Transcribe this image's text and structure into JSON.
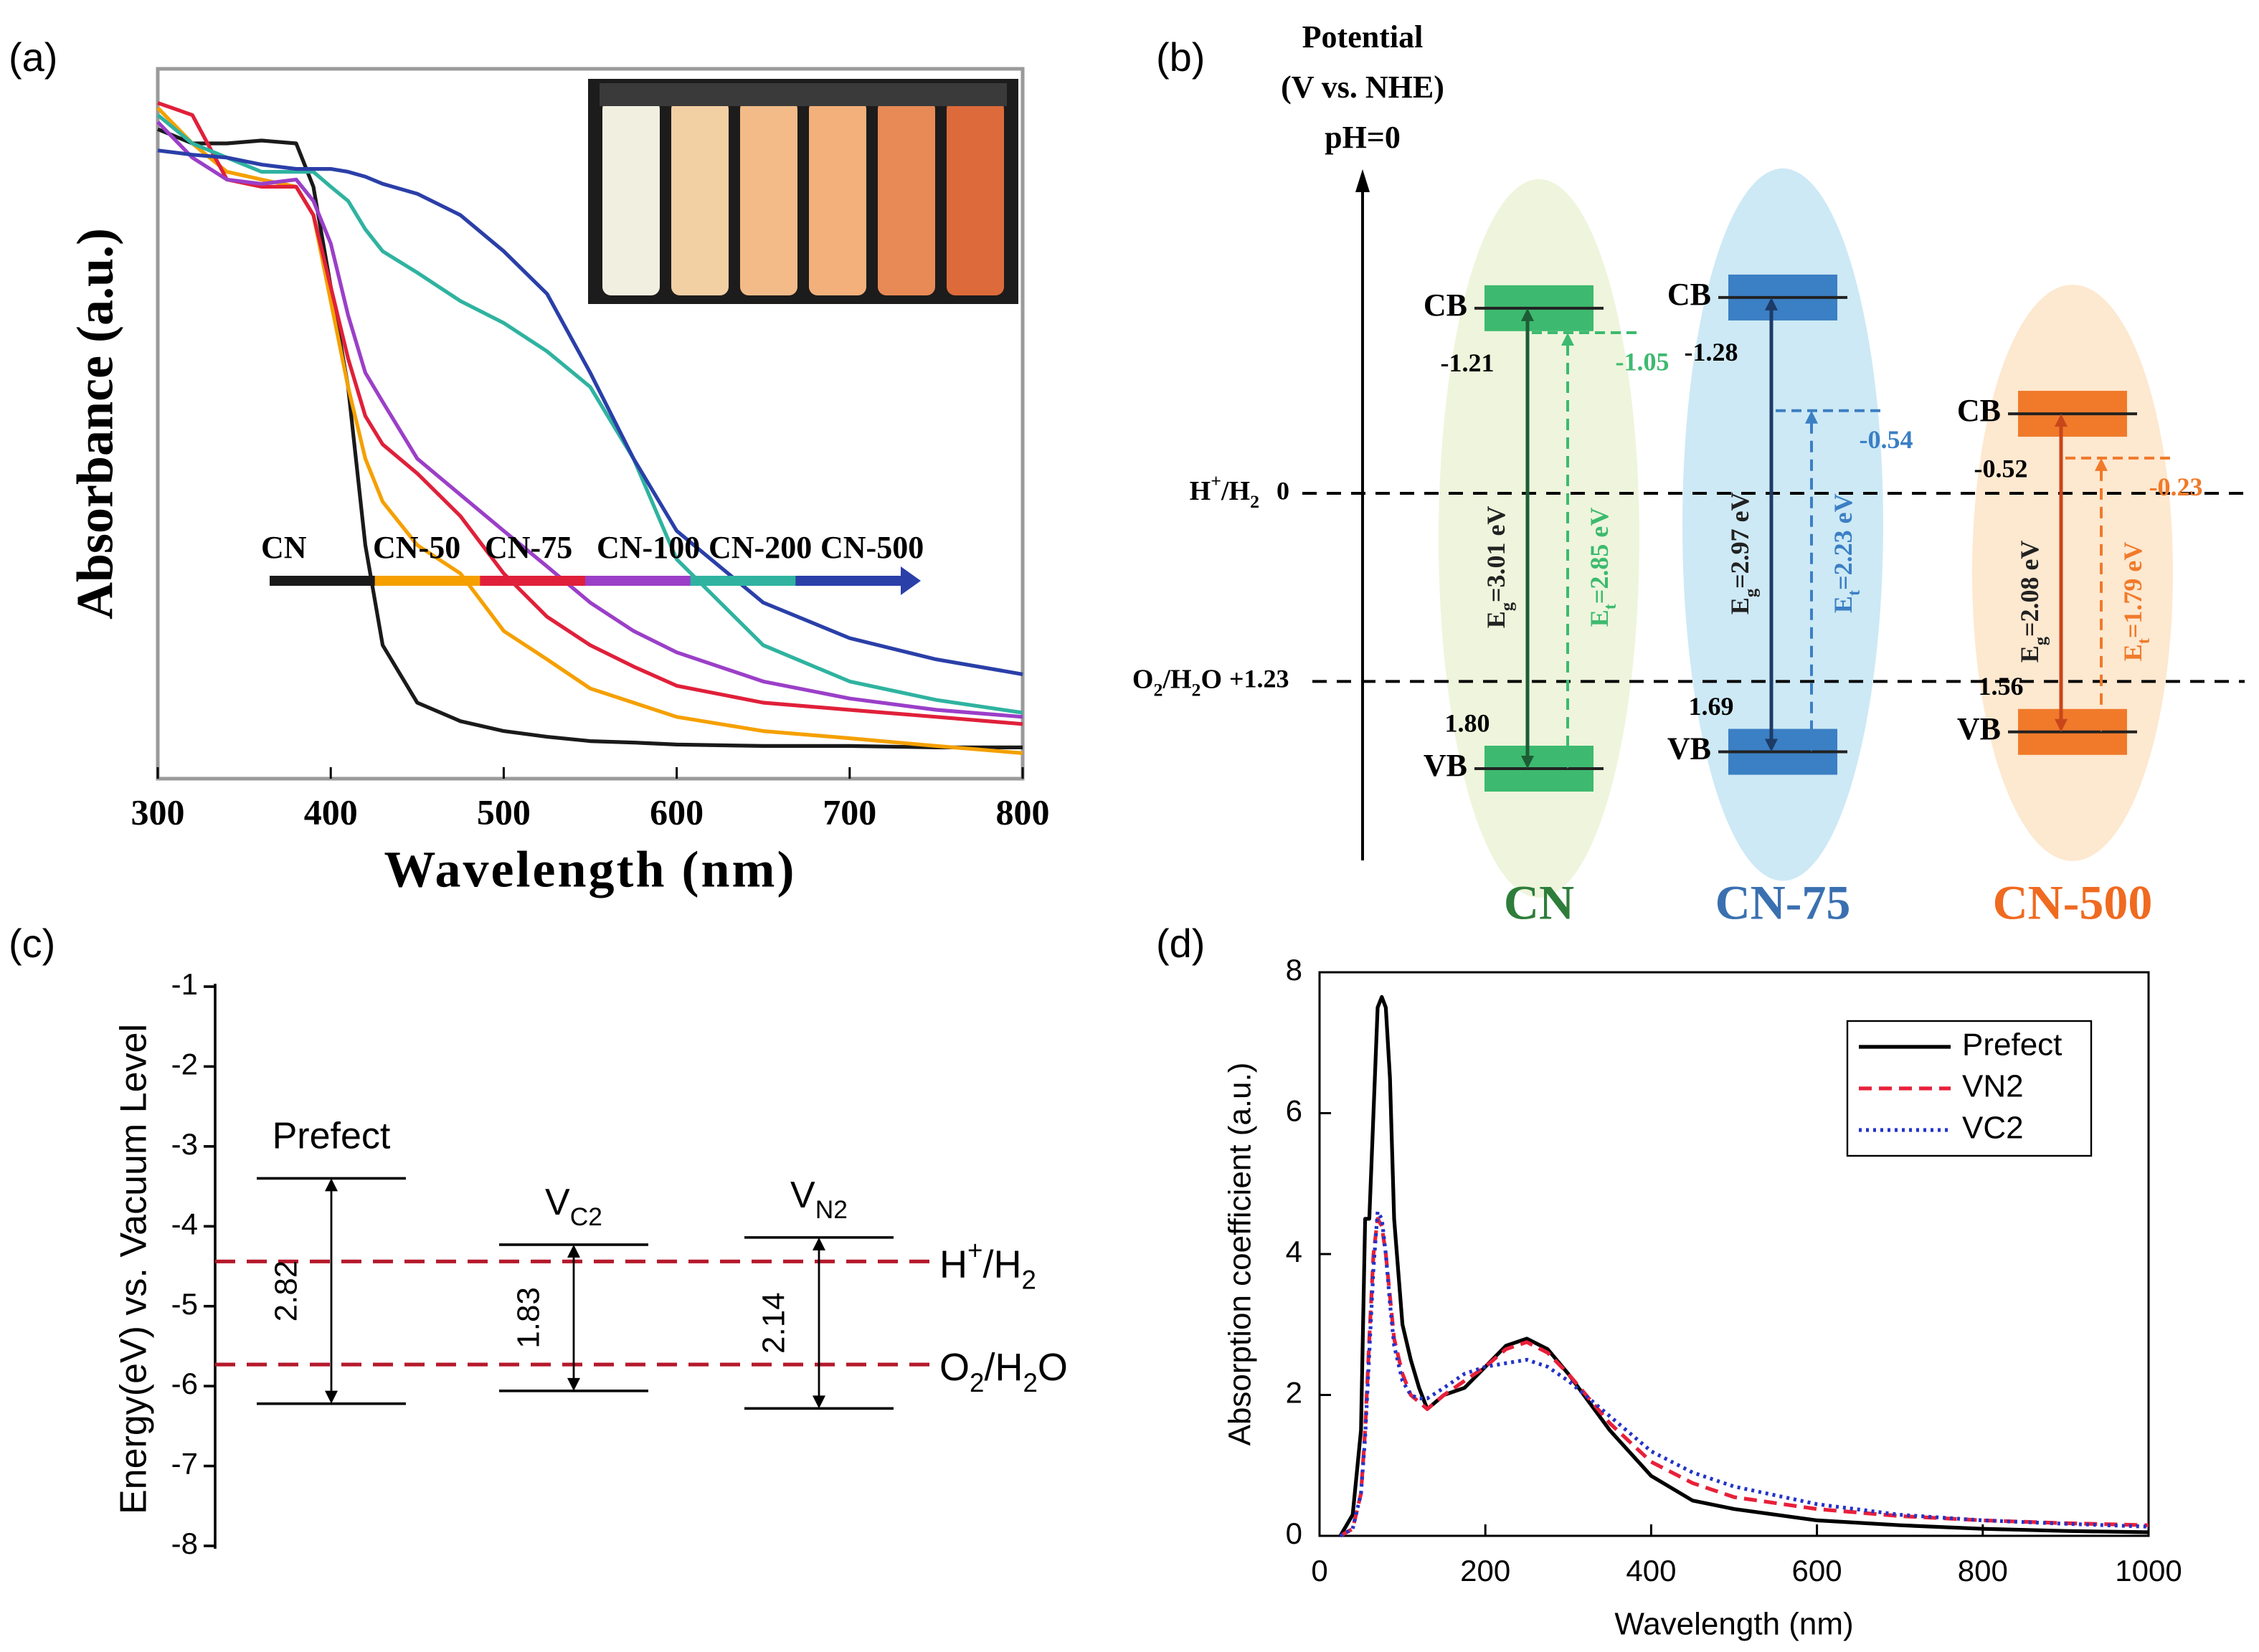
{
  "chart_data": [
    {
      "type": "line",
      "panel_label": "(a)",
      "xlabel": "Wavelength (nm)",
      "ylabel": "Absorbance (a.u.)",
      "xlim": [
        300,
        800
      ],
      "xticks": [
        300,
        400,
        500,
        600,
        700,
        800
      ],
      "ylim": [
        0,
        1
      ],
      "legend": "center",
      "x": [
        300,
        320,
        340,
        360,
        380,
        390,
        400,
        410,
        420,
        430,
        450,
        475,
        500,
        525,
        550,
        575,
        600,
        650,
        700,
        750,
        800
      ],
      "series": [
        {
          "name": "CN",
          "color": "#1a1a1a",
          "linestyle": "solid",
          "values": [
            0.915,
            0.895,
            0.895,
            0.899,
            0.895,
            0.834,
            0.693,
            0.552,
            0.329,
            0.188,
            0.107,
            0.081,
            0.067,
            0.059,
            0.053,
            0.051,
            0.048,
            0.046,
            0.046,
            0.044,
            0.044
          ]
        },
        {
          "name": "CN-50",
          "color": "#f5a000",
          "linestyle": "solid",
          "values": [
            0.945,
            0.895,
            0.855,
            0.844,
            0.834,
            0.794,
            0.673,
            0.552,
            0.451,
            0.39,
            0.329,
            0.289,
            0.208,
            0.168,
            0.127,
            0.107,
            0.087,
            0.067,
            0.057,
            0.046,
            0.036
          ]
        },
        {
          "name": "CN-75",
          "color": "#e0203a",
          "linestyle": "solid",
          "values": [
            0.952,
            0.935,
            0.844,
            0.834,
            0.834,
            0.794,
            0.693,
            0.592,
            0.511,
            0.471,
            0.43,
            0.37,
            0.289,
            0.228,
            0.188,
            0.158,
            0.131,
            0.107,
            0.097,
            0.087,
            0.077
          ]
        },
        {
          "name": "CN-100",
          "color": "#9b3fc8",
          "linestyle": "solid",
          "values": [
            0.925,
            0.875,
            0.844,
            0.838,
            0.844,
            0.814,
            0.754,
            0.653,
            0.572,
            0.531,
            0.451,
            0.4,
            0.349,
            0.299,
            0.248,
            0.208,
            0.178,
            0.137,
            0.113,
            0.097,
            0.087
          ]
        },
        {
          "name": "CN-200",
          "color": "#2fb3a0",
          "linestyle": "solid",
          "values": [
            0.935,
            0.895,
            0.875,
            0.855,
            0.855,
            0.855,
            0.834,
            0.814,
            0.774,
            0.743,
            0.713,
            0.673,
            0.642,
            0.602,
            0.552,
            0.451,
            0.309,
            0.188,
            0.137,
            0.111,
            0.093
          ]
        },
        {
          "name": "CN-500",
          "color": "#2a3fa8",
          "linestyle": "solid",
          "values": [
            0.885,
            0.879,
            0.875,
            0.865,
            0.859,
            0.859,
            0.859,
            0.855,
            0.848,
            0.838,
            0.824,
            0.794,
            0.743,
            0.683,
            0.572,
            0.451,
            0.349,
            0.248,
            0.198,
            0.168,
            0.147
          ]
        }
      ]
    },
    {
      "type": "band-diagram",
      "panel_label": "(b)",
      "axis_title": [
        "Potential",
        "(V vs. NHE)",
        "pH=0"
      ],
      "ylim": [
        2.4,
        -2.1
      ],
      "band_labels": {
        "cb": "CB",
        "vb": "VB"
      },
      "references": [
        {
          "parts": [
            "H",
            "+",
            "/H",
            "2"
          ],
          "value": 0
        },
        {
          "parts": [
            "O",
            "2",
            "/H",
            "2",
            "O"
          ],
          "value": 1.23,
          "value_label": "+1.23"
        }
      ],
      "materials": [
        {
          "name": "CN",
          "color": "#3dba6f",
          "line_color": "#1d5c34",
          "text_color": "#2e7d3a",
          "ellipse_color": "#eef5dc",
          "cb": -1.21,
          "vb": 1.8,
          "vb_label": "1.80",
          "trap": -1.05,
          "eg_label": [
            "E",
            "g",
            "=3.01 eV"
          ],
          "et_label": [
            "E",
            "t",
            "=2.85 eV"
          ]
        },
        {
          "name": "CN-75",
          "color": "#3b7fc4",
          "line_color": "#1d3b66",
          "text_color": "#3a70b0",
          "ellipse_color": "#cde9f5",
          "cb": -1.28,
          "vb": 1.69,
          "trap": -0.54,
          "eg_label": [
            "E",
            "g",
            "=2.97 eV"
          ],
          "et_label": [
            "E",
            "t",
            "=2.23 eV"
          ]
        },
        {
          "name": "CN-500",
          "color": "#f07a2a",
          "line_color": "#c8461a",
          "text_color": "#f06a20",
          "ellipse_color": "#fde8d0",
          "cb": -0.52,
          "vb": 1.56,
          "trap": -0.23,
          "eg_label": [
            "E",
            "g",
            "=2.08 eV"
          ],
          "et_label": [
            "E",
            "t",
            "=1.79 eV"
          ]
        }
      ]
    },
    {
      "type": "energy-levels",
      "panel_label": "(c)",
      "ylabel": "Energy(eV) vs. Vacuum Level",
      "ylim": [
        -8,
        -1
      ],
      "yticks": [
        -8,
        -7,
        -6,
        -5,
        -4,
        -3,
        -2,
        -1
      ],
      "reference_color": "#b5182b",
      "references": [
        {
          "parts": [
            "H",
            "+",
            "/H",
            "2"
          ],
          "value": -4.44
        },
        {
          "parts": [
            "O",
            "2",
            "/H",
            "2",
            "O"
          ],
          "value": -5.73
        }
      ],
      "levels": [
        {
          "name": [
            "Prefect"
          ],
          "cbm": -3.4,
          "vbm": -6.22,
          "gap": 2.82
        },
        {
          "name": [
            "V",
            "C2"
          ],
          "cbm": -4.23,
          "vbm": -6.06,
          "gap": 1.83
        },
        {
          "name": [
            "V",
            "N2"
          ],
          "cbm": -4.14,
          "vbm": -6.28,
          "gap": 2.14
        }
      ]
    },
    {
      "type": "line",
      "panel_label": "(d)",
      "xlabel": "Wavelength (nm)",
      "ylabel": "Absorption coefficient (a.u.)",
      "xlim": [
        0,
        1000
      ],
      "xticks": [
        0,
        200,
        400,
        600,
        800,
        1000
      ],
      "ylim": [
        0,
        8
      ],
      "yticks": [
        0,
        2,
        4,
        6,
        8
      ],
      "legend": "upper right",
      "x": [
        25,
        40,
        50,
        55,
        60,
        65,
        70,
        75,
        80,
        85,
        90,
        100,
        110,
        120,
        130,
        150,
        175,
        200,
        225,
        250,
        275,
        300,
        350,
        400,
        450,
        500,
        600,
        700,
        800,
        900,
        1000
      ],
      "series": [
        {
          "name": "Prefect",
          "color": "#000000",
          "linestyle": "solid",
          "values": [
            0,
            0.3,
            1.5,
            4.5,
            4.5,
            6,
            7.5,
            7.65,
            7.5,
            6.5,
            4.5,
            3,
            2.5,
            2.1,
            1.8,
            2.0,
            2.1,
            2.4,
            2.7,
            2.8,
            2.65,
            2.3,
            1.5,
            0.85,
            0.5,
            0.38,
            0.22,
            0.15,
            0.1,
            0.07,
            0.05
          ]
        },
        {
          "name": "VN2",
          "color": "#e8203a",
          "linestyle": "dashed",
          "values": [
            0,
            0.1,
            0.6,
            1.5,
            2.8,
            4.0,
            4.5,
            4.4,
            4.0,
            3.4,
            2.8,
            2.3,
            2.0,
            1.9,
            1.8,
            2.0,
            2.2,
            2.4,
            2.65,
            2.75,
            2.6,
            2.3,
            1.6,
            1.05,
            0.75,
            0.55,
            0.38,
            0.28,
            0.22,
            0.18,
            0.15
          ]
        },
        {
          "name": "VC2",
          "color": "#2433c8",
          "linestyle": "dotted",
          "values": [
            0,
            0.1,
            0.6,
            1.4,
            2.6,
            3.8,
            4.6,
            4.5,
            4.0,
            3.3,
            2.7,
            2.2,
            2.0,
            1.95,
            1.95,
            2.1,
            2.3,
            2.4,
            2.45,
            2.5,
            2.4,
            2.2,
            1.7,
            1.2,
            0.9,
            0.7,
            0.45,
            0.3,
            0.22,
            0.17,
            0.13
          ]
        }
      ]
    }
  ]
}
